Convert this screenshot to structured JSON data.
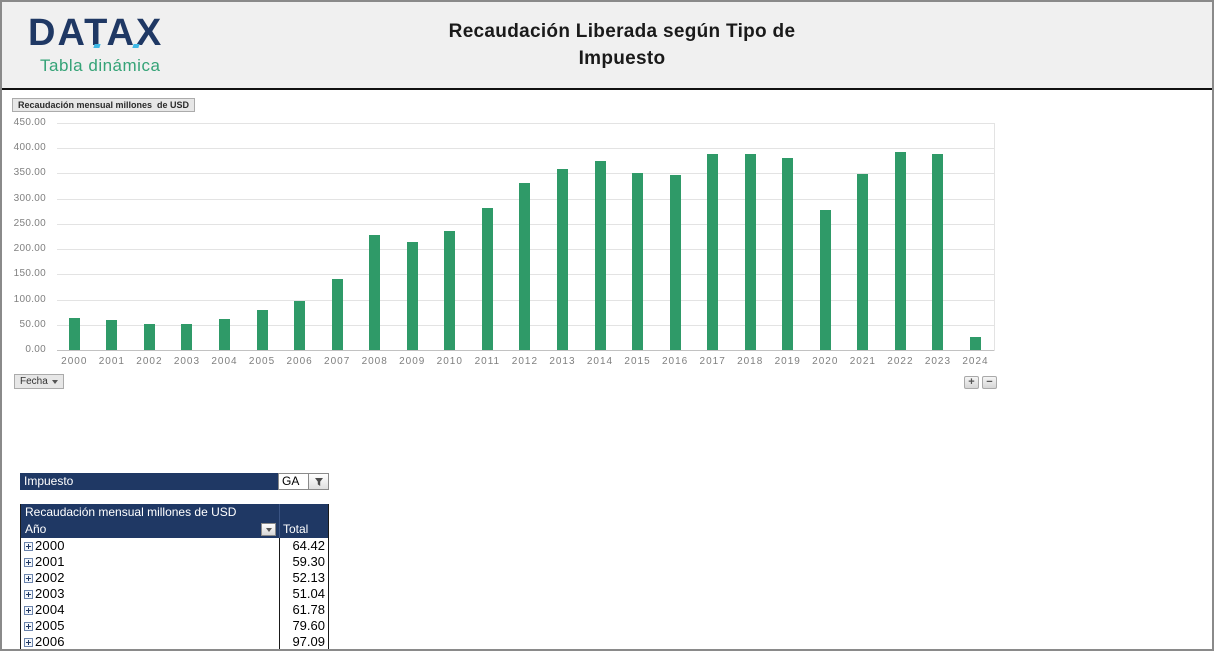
{
  "header": {
    "logo_title": "DATAX",
    "logo_subtitle": "Tabla dinámica",
    "title_line1": "Recaudación Liberada según Tipo de",
    "title_line2": "Impuesto"
  },
  "chart": {
    "field_button": "Recaudación mensual millones  de USD",
    "axis_field_button": "Fecha",
    "expand_button": "+",
    "collapse_button": "−"
  },
  "chart_data": {
    "type": "bar",
    "title": "Recaudación mensual millones de USD",
    "categories": [
      "2000",
      "2001",
      "2002",
      "2003",
      "2004",
      "2005",
      "2006",
      "2007",
      "2008",
      "2009",
      "2010",
      "2011",
      "2012",
      "2013",
      "2014",
      "2015",
      "2016",
      "2017",
      "2018",
      "2019",
      "2020",
      "2021",
      "2022",
      "2023",
      "2024"
    ],
    "values": [
      64.42,
      59.3,
      52.13,
      51.04,
      61.78,
      79.6,
      97.09,
      140,
      228,
      214,
      236,
      282,
      331,
      359,
      375,
      351,
      347,
      388,
      388,
      381,
      277,
      349,
      392,
      389,
      26
    ],
    "xlabel": "Fecha",
    "ylabel": "",
    "ylim": [
      0,
      450
    ],
    "ytick_step": 50,
    "ytick_format": "0.00",
    "grid": true,
    "legend": false,
    "bar_color": "#2f9a68"
  },
  "pivot": {
    "filter_label": "Impuesto",
    "filter_value": "GA",
    "table_title": "Recaudación mensual millones de USD",
    "row_header": "Año",
    "value_header": "Total",
    "rows": [
      {
        "year": "2000",
        "total": "64.42"
      },
      {
        "year": "2001",
        "total": "59.30"
      },
      {
        "year": "2002",
        "total": "52.13"
      },
      {
        "year": "2003",
        "total": "51.04"
      },
      {
        "year": "2004",
        "total": "61.78"
      },
      {
        "year": "2005",
        "total": "79.60"
      },
      {
        "year": "2006",
        "total": "97.09"
      }
    ]
  },
  "colors": {
    "brand_navy": "#1f3864",
    "brand_green": "#35a377",
    "bar_green": "#2f9a68",
    "header_bg": "#f0f0f0",
    "axis_text": "#7f7f7f"
  }
}
